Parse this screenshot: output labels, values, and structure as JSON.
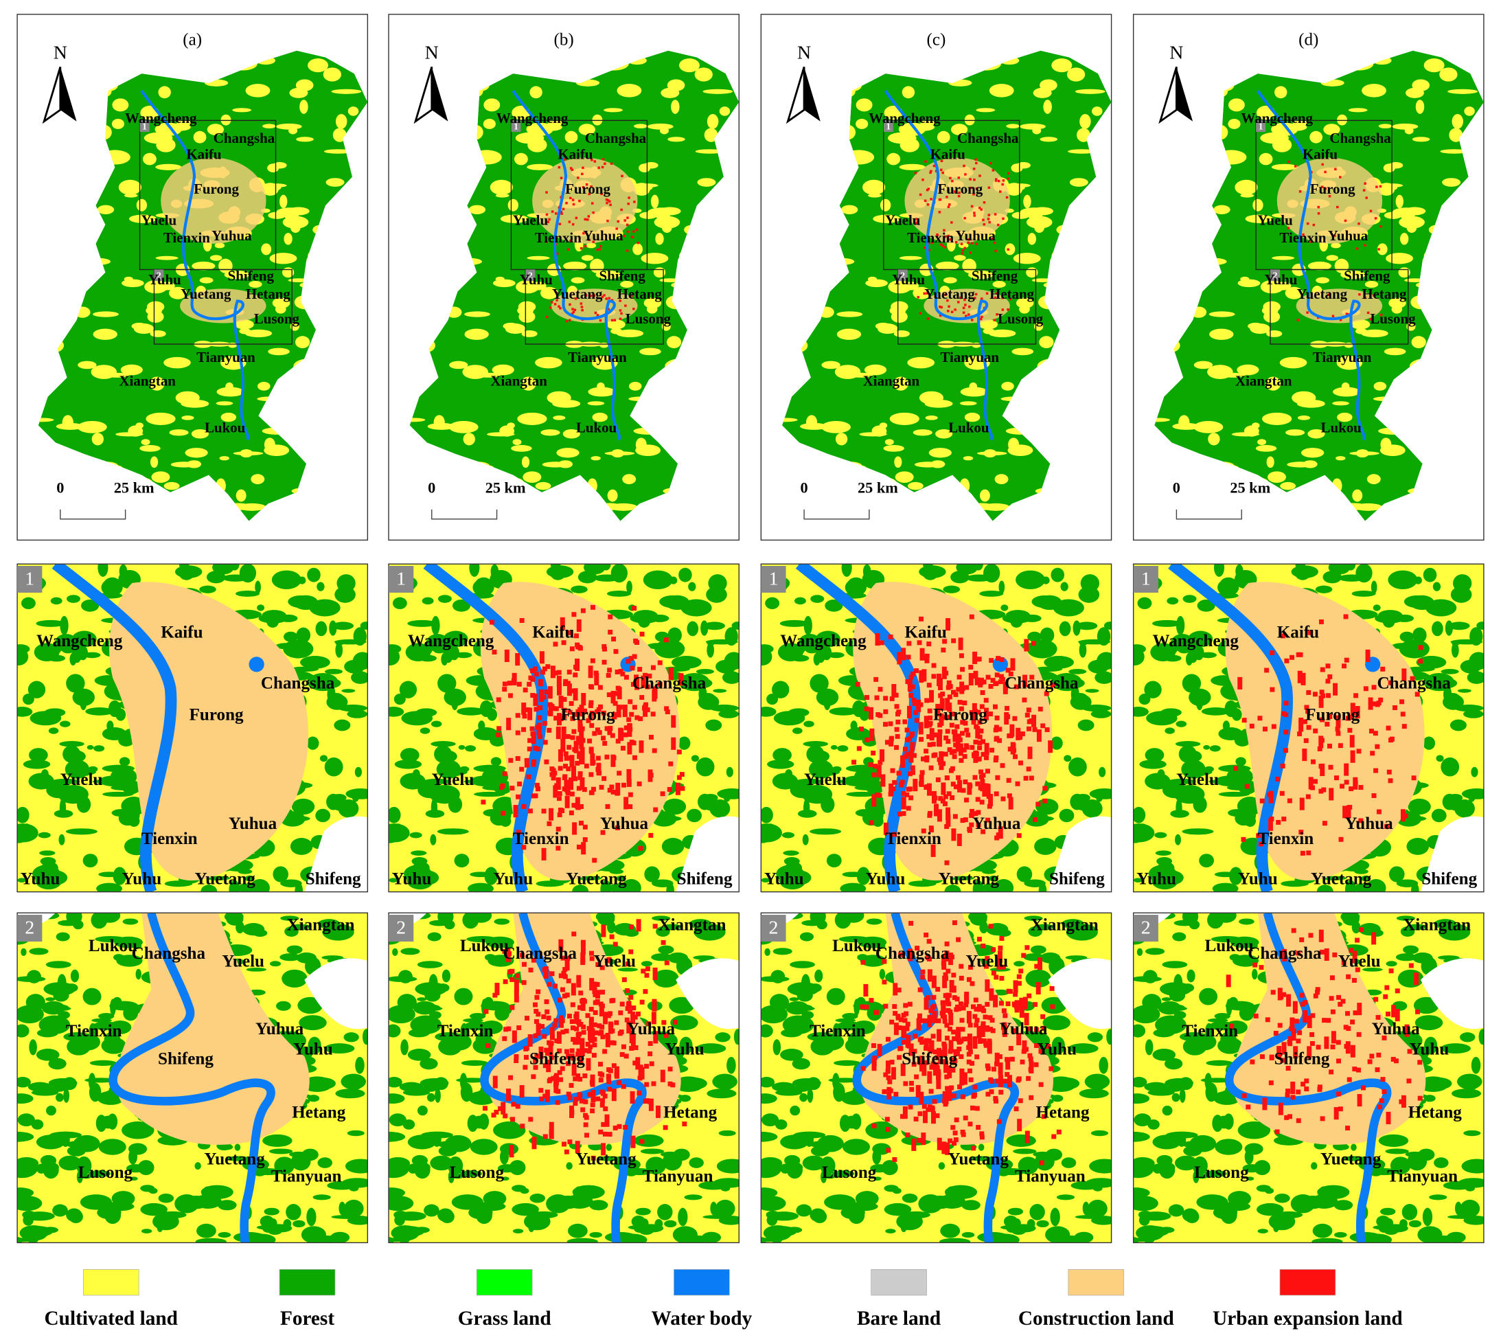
{
  "panels": [
    "(a)",
    "(b)",
    "(c)",
    "(d)"
  ],
  "north": "N",
  "scale_bar": {
    "start": "0",
    "end": "25 km"
  },
  "inset_labels": [
    "1",
    "2"
  ],
  "overview_places": [
    "Wangcheng",
    "Kaifu",
    "Changsha",
    "Furong",
    "Yuelu",
    "Tienxin",
    "Yuhua",
    "Yuhu",
    "Shifeng",
    "Yuetang",
    "Hetang",
    "Lusong",
    "Tianyuan",
    "Xiangtan",
    "Lukou"
  ],
  "inset_1_places": [
    "Wangcheng",
    "Kaifu",
    "Changsha",
    "Furong",
    "Yuelu",
    "Tienxin",
    "Yuhua",
    "Yuhu",
    "Yuhu",
    "Yuetang",
    "Shifeng"
  ],
  "inset_2_places": [
    "Changsha",
    "Yuelu",
    "Tienxin",
    "Yuhua",
    "Yuhu",
    "Shifeng",
    "Hetang",
    "Yuetang",
    "Lusong",
    "Tianyuan",
    "Xiangtan",
    "Lukou"
  ],
  "legend": [
    {
      "name": "Cultivated land",
      "color": "#ffff40"
    },
    {
      "name": "Forest",
      "color": "#0aa800"
    },
    {
      "name": "Grass land",
      "color": "#00ff00"
    },
    {
      "name": "Water body",
      "color": "#0a7cf5"
    },
    {
      "name": "Bare land",
      "color": "#cccccc"
    },
    {
      "name": "Construction land",
      "color": "#fcd07e"
    },
    {
      "name": "Urban expansion land",
      "color": "#ff1010"
    }
  ]
}
